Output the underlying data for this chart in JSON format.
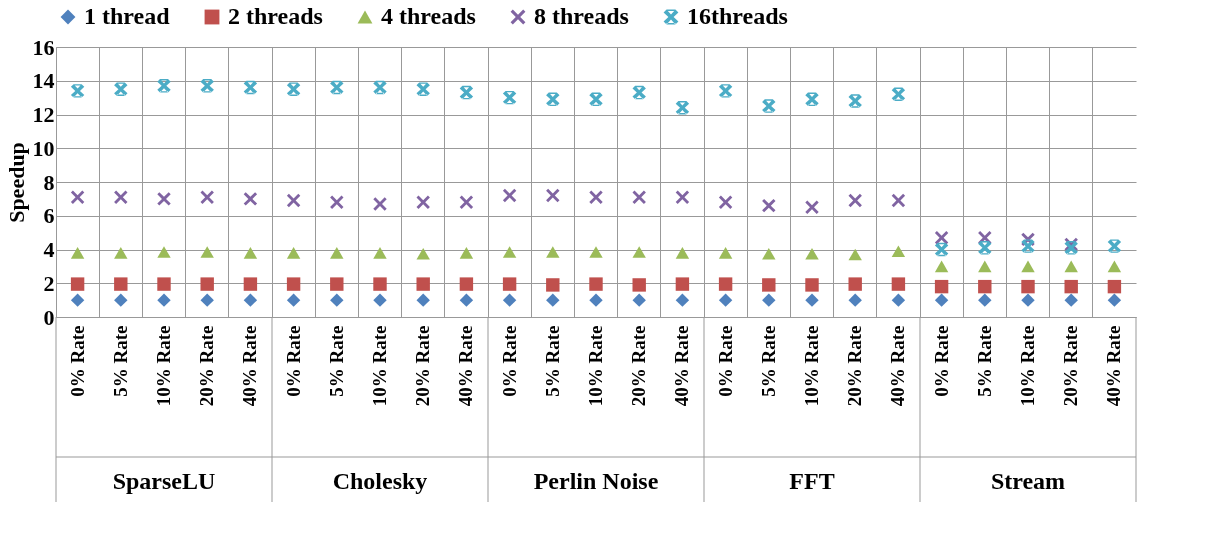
{
  "chart_data": {
    "type": "scatter",
    "ylabel": "Speedup",
    "ylim": [
      0,
      16
    ],
    "yticks": [
      0,
      2,
      4,
      6,
      8,
      10,
      12,
      14,
      16
    ],
    "grid": true,
    "legend": "top",
    "categories": [
      "0% Rate",
      "5% Rate",
      "10% Rate",
      "20% Rate",
      "40% Rate",
      "0% Rate",
      "5% Rate",
      "10% Rate",
      "20% Rate",
      "40% Rate",
      "0% Rate",
      "5% Rate",
      "10% Rate",
      "20% Rate",
      "40% Rate",
      "0% Rate",
      "5% Rate",
      "10% Rate",
      "20% Rate",
      "40% Rate",
      "0% Rate",
      "5% Rate",
      "10% Rate",
      "20% Rate",
      "40% Rate"
    ],
    "annotations": [
      "SparseLU",
      "Cholesky",
      "Perlin Noise",
      "FFT",
      "Stream"
    ],
    "series": [
      {
        "name": "1 thread",
        "color": "#4f81bd",
        "marker": "diamond",
        "values": [
          1,
          1,
          1,
          1,
          1,
          1,
          1,
          1,
          1,
          1,
          1,
          1,
          1,
          1,
          1,
          1,
          1,
          1,
          1,
          1,
          1,
          1,
          1,
          1,
          1
        ]
      },
      {
        "name": "2 threads",
        "color": "#c0504d",
        "marker": "square",
        "values": [
          1.95,
          1.95,
          1.95,
          1.95,
          1.95,
          1.95,
          1.95,
          1.95,
          1.95,
          1.95,
          1.95,
          1.9,
          1.95,
          1.9,
          1.95,
          1.95,
          1.9,
          1.9,
          1.95,
          1.95,
          1.8,
          1.8,
          1.8,
          1.8,
          1.8
        ]
      },
      {
        "name": "4 threads",
        "color": "#9bbb59",
        "marker": "triangle",
        "values": [
          3.8,
          3.8,
          3.85,
          3.85,
          3.8,
          3.8,
          3.8,
          3.8,
          3.75,
          3.8,
          3.85,
          3.85,
          3.85,
          3.85,
          3.8,
          3.8,
          3.75,
          3.75,
          3.7,
          3.9,
          3.0,
          3.0,
          3.0,
          3.0,
          3.0
        ]
      },
      {
        "name": "8 threads",
        "color": "#8064a2",
        "marker": "cross",
        "values": [
          7.1,
          7.1,
          7.0,
          7.1,
          7.0,
          6.9,
          6.8,
          6.7,
          6.8,
          6.8,
          7.2,
          7.2,
          7.1,
          7.1,
          7.1,
          6.8,
          6.6,
          6.5,
          6.9,
          6.9,
          4.7,
          4.7,
          4.6,
          4.3,
          null
        ]
      },
      {
        "name": "16threads",
        "color": "#4bacc6",
        "marker": "star",
        "values": [
          13.4,
          13.5,
          13.7,
          13.7,
          13.6,
          13.5,
          13.6,
          13.6,
          13.5,
          13.3,
          13.0,
          12.9,
          12.9,
          13.3,
          12.4,
          13.4,
          12.5,
          12.9,
          12.8,
          13.2,
          4.0,
          4.1,
          4.2,
          4.1,
          4.2
        ]
      }
    ]
  }
}
